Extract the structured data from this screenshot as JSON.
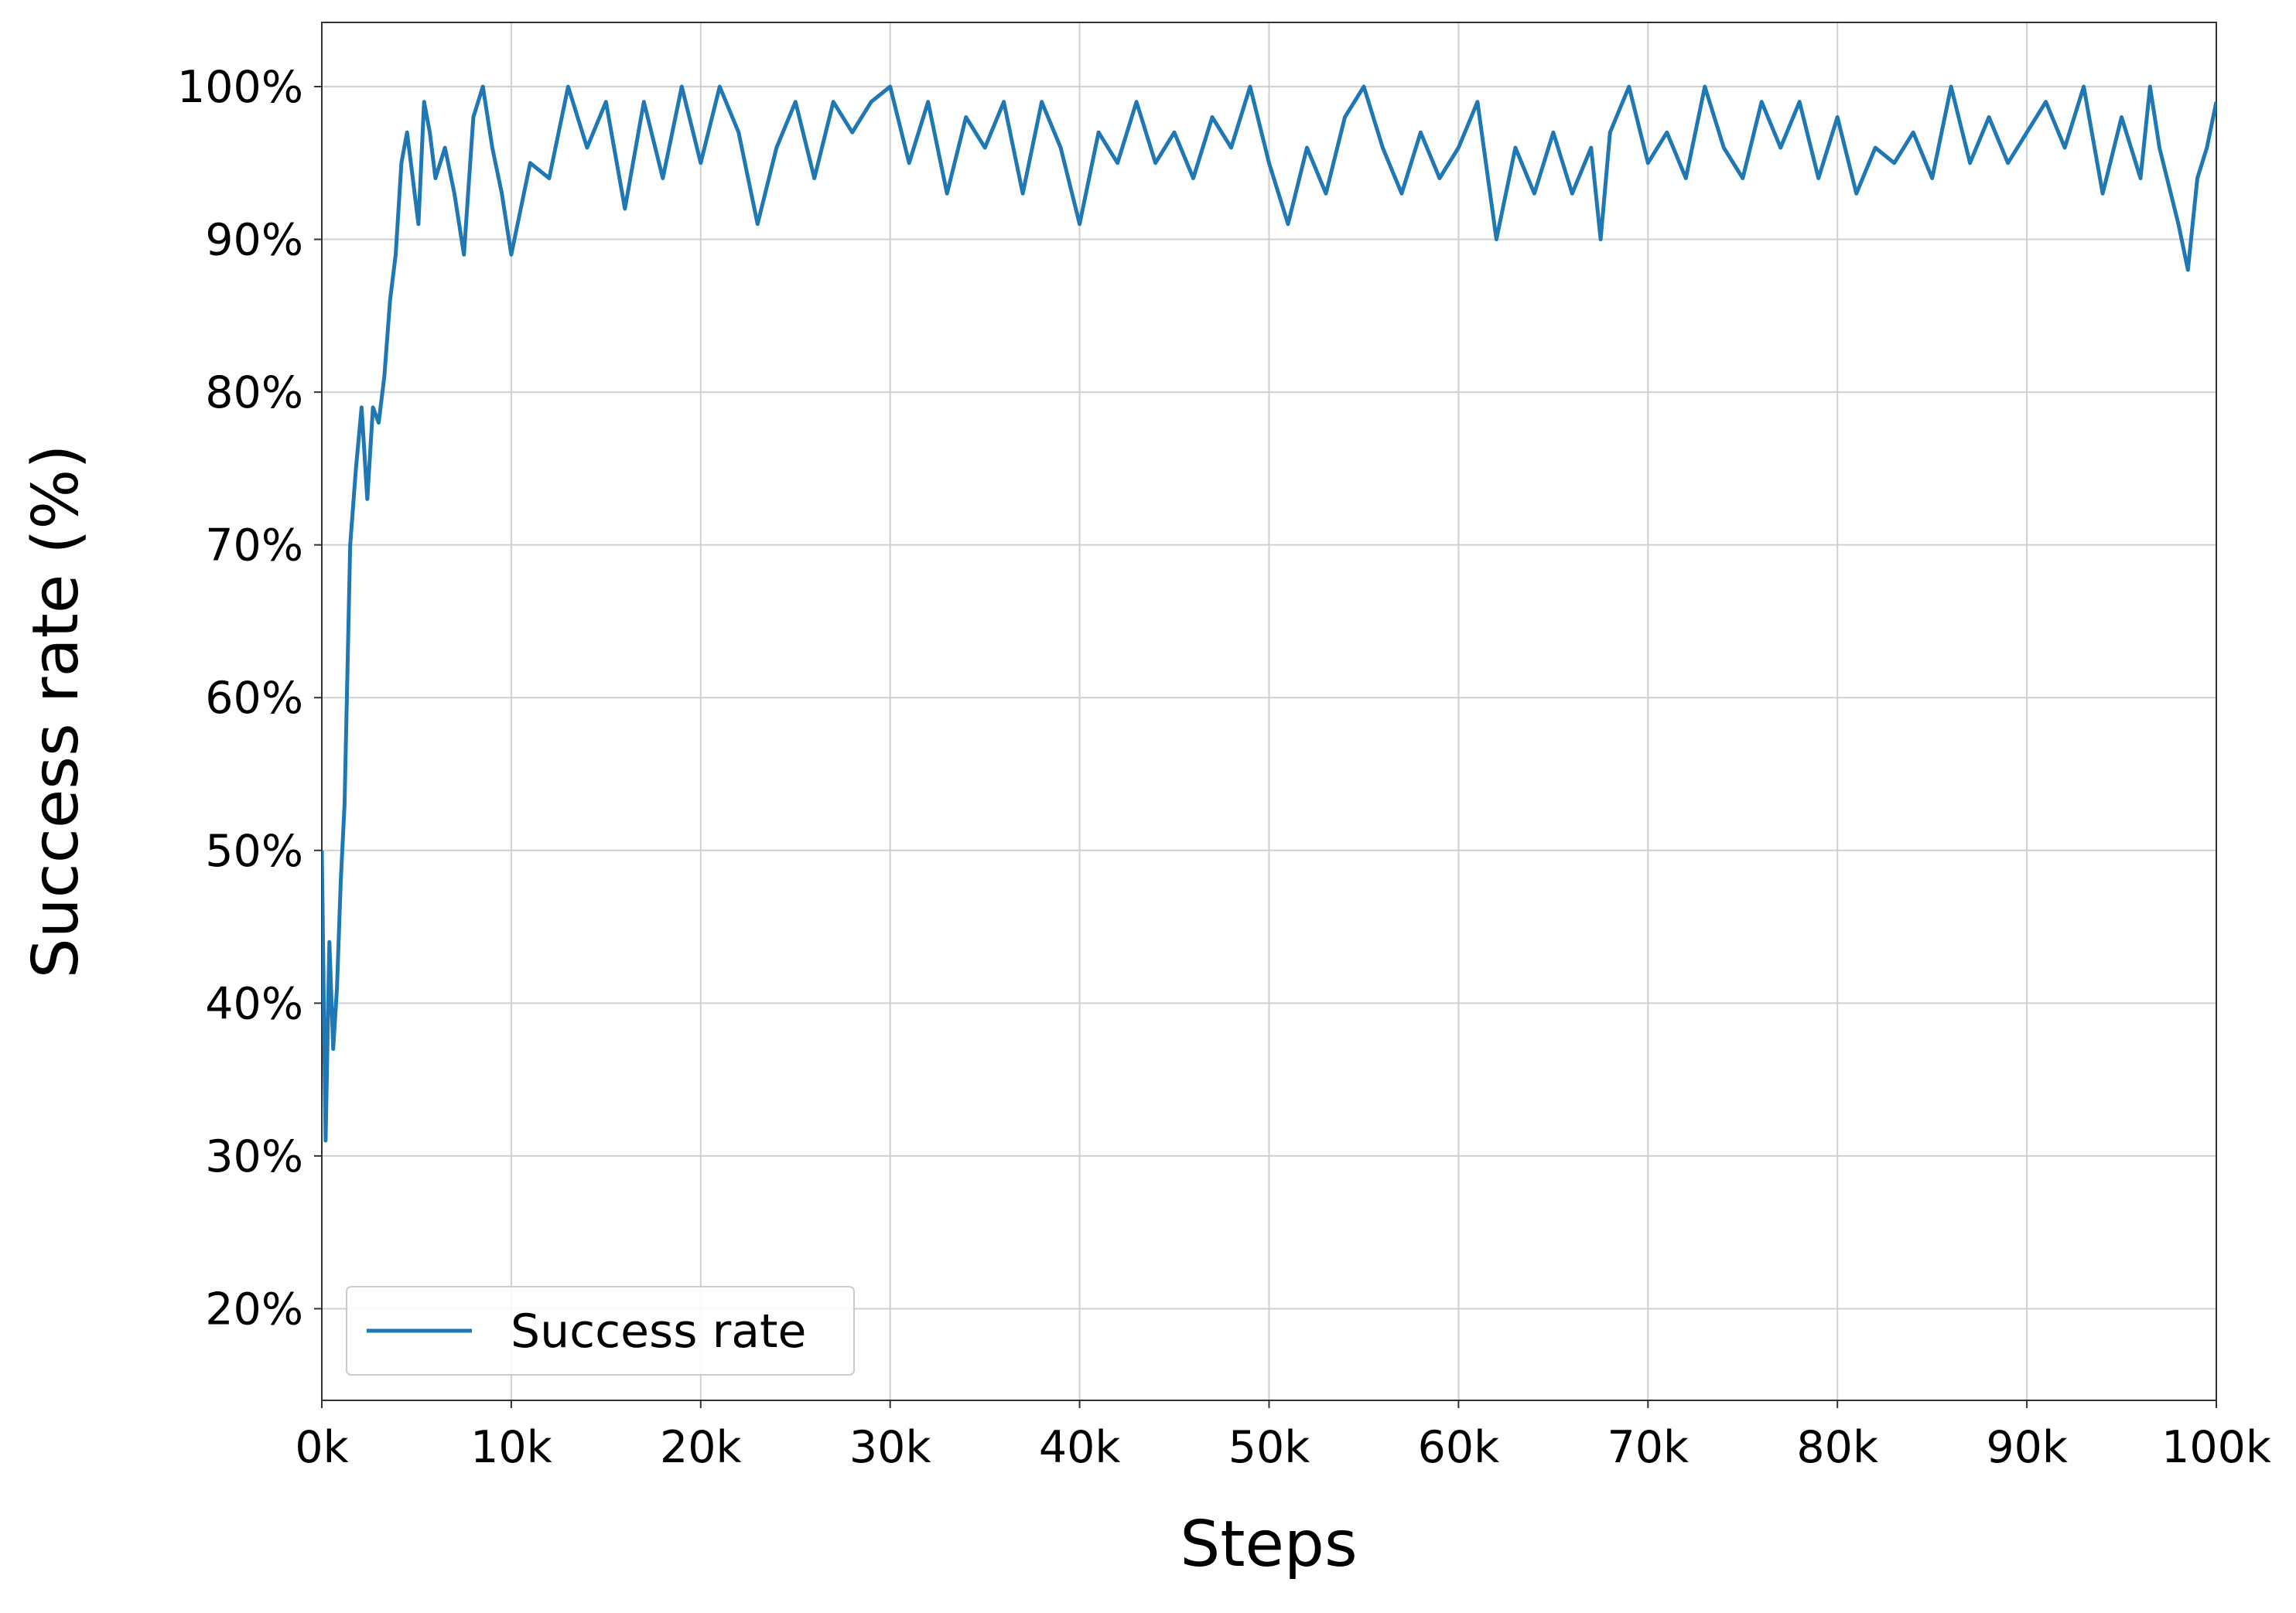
{
  "chart_data": {
    "type": "line",
    "xlabel": "Steps",
    "ylabel": "Success rate (%)",
    "xlim": [
      0,
      100000
    ],
    "ylim": [
      14,
      104.2
    ],
    "xticks": [
      {
        "value": 0,
        "label": "0k"
      },
      {
        "value": 10000,
        "label": "10k"
      },
      {
        "value": 20000,
        "label": "20k"
      },
      {
        "value": 30000,
        "label": "30k"
      },
      {
        "value": 40000,
        "label": "40k"
      },
      {
        "value": 50000,
        "label": "50k"
      },
      {
        "value": 60000,
        "label": "60k"
      },
      {
        "value": 70000,
        "label": "70k"
      },
      {
        "value": 80000,
        "label": "80k"
      },
      {
        "value": 90000,
        "label": "90k"
      },
      {
        "value": 100000,
        "label": "100k"
      }
    ],
    "yticks": [
      {
        "value": 20,
        "label": "20%"
      },
      {
        "value": 30,
        "label": "30%"
      },
      {
        "value": 40,
        "label": "40%"
      },
      {
        "value": 50,
        "label": "50%"
      },
      {
        "value": 60,
        "label": "60%"
      },
      {
        "value": 70,
        "label": "70%"
      },
      {
        "value": 80,
        "label": "80%"
      },
      {
        "value": 90,
        "label": "90%"
      },
      {
        "value": 100,
        "label": "100%"
      }
    ],
    "grid": true,
    "legend": "lower left",
    "x": [
      0,
      200,
      400,
      600,
      800,
      1000,
      1200,
      1500,
      1800,
      2100,
      2400,
      2700,
      3000,
      3300,
      3600,
      3900,
      4200,
      4500,
      4800,
      5100,
      5400,
      5700,
      6000,
      6500,
      7000,
      7500,
      8000,
      8500,
      9000,
      9500,
      10000,
      11000,
      12000,
      13000,
      14000,
      15000,
      16000,
      17000,
      18000,
      19000,
      20000,
      21000,
      22000,
      23000,
      24000,
      25000,
      26000,
      27000,
      28000,
      29000,
      30000,
      31000,
      32000,
      33000,
      34000,
      35000,
      36000,
      37000,
      38000,
      39000,
      40000,
      41000,
      42000,
      43000,
      44000,
      45000,
      46000,
      47000,
      48000,
      49000,
      50000,
      51000,
      52000,
      53000,
      54000,
      55000,
      56000,
      57000,
      58000,
      59000,
      60000,
      61000,
      62000,
      63000,
      64000,
      65000,
      66000,
      67000,
      67500,
      68000,
      69000,
      70000,
      71000,
      72000,
      73000,
      74000,
      75000,
      76000,
      77000,
      78000,
      79000,
      80000,
      81000,
      82000,
      83000,
      84000,
      85000,
      86000,
      87000,
      88000,
      89000,
      90000,
      91000,
      92000,
      93000,
      94000,
      95000,
      96000,
      96500,
      97000,
      98000,
      98500,
      99000,
      99500,
      100000
    ],
    "series": [
      {
        "name": "Success rate",
        "color": "#1f77b4",
        "values": [
          50,
          31,
          44,
          37,
          41,
          48,
          53,
          70,
          75,
          79,
          73,
          79,
          78,
          81,
          86,
          89,
          95,
          97,
          94,
          91,
          99,
          97,
          94,
          96,
          93,
          89,
          98,
          100,
          96,
          93,
          89,
          95,
          94,
          100,
          96,
          99,
          92,
          99,
          94,
          100,
          95,
          100,
          97,
          91,
          96,
          99,
          94,
          99,
          97,
          99,
          100,
          95,
          99,
          93,
          98,
          96,
          99,
          93,
          99,
          96,
          91,
          97,
          95,
          99,
          95,
          97,
          94,
          98,
          96,
          100,
          95,
          91,
          96,
          93,
          98,
          100,
          96,
          93,
          97,
          94,
          96,
          99,
          90,
          96,
          93,
          97,
          93,
          96,
          90,
          97,
          100,
          95,
          97,
          94,
          100,
          96,
          94,
          99,
          96,
          99,
          94,
          98,
          93,
          96,
          95,
          97,
          94,
          100,
          95,
          98,
          95,
          97,
          99,
          96,
          100,
          93,
          98,
          94,
          100,
          96,
          91,
          88,
          94,
          96,
          99
        ]
      }
    ]
  }
}
